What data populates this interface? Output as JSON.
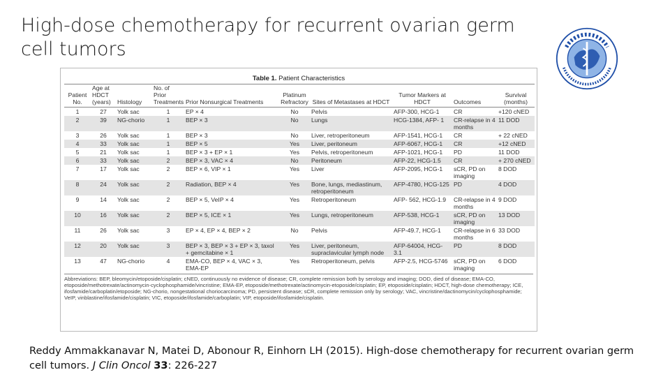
{
  "slide": {
    "title": "High-dose chemotherapy for recurrent ovarian germ cell tumors",
    "logo_text": "北 京 协 和 医 院"
  },
  "table": {
    "caption_bold": "Table 1.",
    "caption_rest": " Patient Characteristics",
    "columns": [
      "Patient No.",
      "Age at HDCT (years)",
      "Histology",
      "No. of Prior Treatments",
      "Prior Nonsurgical Treatments",
      "Platinum Refractory",
      "Sites of Metastases at HDCT",
      "Tumor Markers at HDCT",
      "Outcomes",
      "Survival (months)"
    ],
    "rows": [
      [
        "1",
        "27",
        "Yolk sac",
        "1",
        "EP × 4",
        "No",
        "Pelvis",
        "AFP-300, HCG-1",
        "CR",
        "+120 cNED"
      ],
      [
        "2",
        "39",
        "NG-chorio",
        "1",
        "BEP × 3",
        "No",
        "Lungs",
        "HCG-1384, AFP- 1",
        "CR-relapse in 4 months",
        "11 DOD"
      ],
      [
        "3",
        "26",
        "Yolk sac",
        "1",
        "BEP × 3",
        "No",
        "Liver, retroperitoneum",
        "AFP-1541, HCG-1",
        "CR",
        "+ 22 cNED"
      ],
      [
        "4",
        "33",
        "Yolk sac",
        "1",
        "BEP × 5",
        "Yes",
        "Liver, peritoneum",
        "AFP-6067, HCG-1",
        "CR",
        "+12 cNED"
      ],
      [
        "5",
        "21",
        "Yolk sac",
        "1",
        "BEP × 3 + EP × 1",
        "Yes",
        "Pelvis, retroperitoneum",
        "AFP-1021, HCG-1",
        "PD",
        "11 DOD"
      ],
      [
        "6",
        "33",
        "Yolk sac",
        "2",
        "BEP × 3, VAC × 4",
        "No",
        "Peritoneum",
        "AFP-22, HCG-1.5",
        "CR",
        "+ 270 cNED"
      ],
      [
        "7",
        "17",
        "Yolk sac",
        "2",
        "BEP × 6, VIP × 1",
        "Yes",
        "Liver",
        "AFP-2095, HCG-1",
        "sCR, PD on imaging",
        "8 DOD"
      ],
      [
        "8",
        "24",
        "Yolk sac",
        "2",
        "Radiation, BEP × 4",
        "Yes",
        "Bone, lungs, mediastinum, retroperitoneum",
        "AFP-4780, HCG-125",
        "PD",
        "4 DOD"
      ],
      [
        "9",
        "14",
        "Yolk sac",
        "2",
        "BEP × 5, VeIP × 4",
        "Yes",
        "Retroperitoneum",
        "AFP- 562, HCG-1.9",
        "CR-relapse in 4 months",
        "9 DOD"
      ],
      [
        "10",
        "16",
        "Yolk sac",
        "2",
        "BEP × 5, ICE × 1",
        "Yes",
        "Lungs, retroperitoneum",
        "AFP-538, HCG-1",
        "sCR, PD on imaging",
        "13 DOD"
      ],
      [
        "11",
        "26",
        "Yolk sac",
        "3",
        "EP × 4, EP × 4, BEP × 2",
        "No",
        "Pelvis",
        "AFP-49.7, HCG-1",
        "CR-relapse in 6 months",
        "33 DOD"
      ],
      [
        "12",
        "20",
        "Yolk sac",
        "3",
        "BEP × 3, BEP × 3 + EP × 3, taxol + gemcitabine × 1",
        "Yes",
        "Liver, peritoneum, supraclavicular lymph node",
        "AFP-64004, HCG-3.1",
        "PD",
        "8 DOD"
      ],
      [
        "13",
        "47",
        "NG-chorio",
        "4",
        "EMA-CO, BEP × 4, VAC × 3, EMA-EP",
        "Yes",
        "Retroperitoneum, pelvis",
        "AFP-2.5, HCG-5746",
        "sCR, PD on imaging",
        "6 DOD"
      ]
    ],
    "abbreviations": "Abbreviations: BEP, bleomycin/etoposide/cisplatin; cNED, continuously no evidence of disease; CR, complete remission both by serology and imaging; DOD, died of disease; EMA-CO, etoposide/methotrexate/actinomycin-cyclophosphamide/vincristine; EMA-EP, etoposide/methotrexate/actinomycin-etoposide/cisplatin; EP, etoposide/cisplatin; HDCT, high-dose chemotherapy; ICE, ifosfamide/carboplatin/etoposide; NG-chorio, nongestational choriocarcinoma; PD, persistent disease; sCR, complete remission only by serology; VAC, vincristine/dactinomycin/cyclophosphamide; VeIP, vinblastine/ifosfamide/cisplatin; VIC, etoposide/ifosfamide/carboplatin; VIP, etoposide/ifosfamide/cisplatin."
  },
  "citation": {
    "text": "Reddy Ammakkanavar N, Matei D, Abonour R, Einhorn LH (2015). High-dose chemotherapy for recurrent ovarian germ cell tumors. ",
    "journal": "J Clin Oncol",
    "volume": "33",
    "pages": ": 226-227"
  },
  "colors": {
    "row_shade": "#e4e4e4",
    "logo_blue": "#1f4fa8",
    "logo_light": "#8fb4e6"
  }
}
